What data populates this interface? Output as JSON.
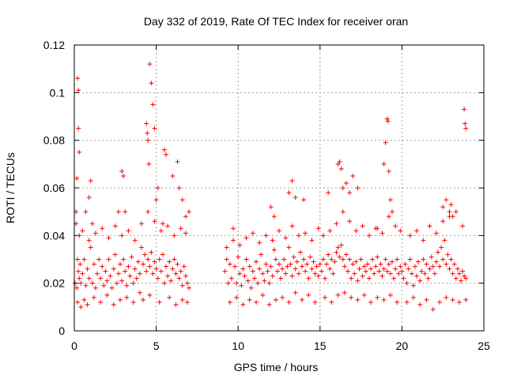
{
  "chart_data": {
    "type": "scatter",
    "title": "Day 332 of 2019, Rate Of TEC Index for receiver oran",
    "xlabel": "GPS time / hours",
    "ylabel": "ROTI / TECUs",
    "xlim": [
      0,
      25
    ],
    "ylim": [
      0,
      0.12
    ],
    "xticks": [
      0,
      5,
      10,
      15,
      20,
      25
    ],
    "xtick_labels": [
      "0",
      "5",
      "10",
      "15",
      "20",
      "25"
    ],
    "yticks": [
      0,
      0.02,
      0.04,
      0.06,
      0.08,
      0.1,
      0.12
    ],
    "ytick_labels": [
      "0",
      "0.02",
      "0.04",
      "0.06",
      "0.08",
      "0.1",
      "0.12"
    ],
    "grid": true,
    "marker": "plus",
    "color": "#ff0000",
    "series": [
      {
        "name": "ROTI",
        "x": [
          0.05,
          0.1,
          0.15,
          0.2,
          0.25,
          0.3,
          0.35,
          0.4,
          0.5,
          0.6,
          0.7,
          0.8,
          0.9,
          1.0,
          1.1,
          1.2,
          1.3,
          1.4,
          1.5,
          1.6,
          1.7,
          1.8,
          1.9,
          2.0,
          2.1,
          2.2,
          2.3,
          2.4,
          2.5,
          2.6,
          2.7,
          2.8,
          2.9,
          3.0,
          3.1,
          3.2,
          3.3,
          3.4,
          3.5,
          3.6,
          3.7,
          3.8,
          3.9,
          4.0,
          4.1,
          4.2,
          4.3,
          4.4,
          4.5,
          4.6,
          4.7,
          4.8,
          4.9,
          5.0,
          5.1,
          5.2,
          5.3,
          5.4,
          5.5,
          5.6,
          5.7,
          5.8,
          5.9,
          6.0,
          6.1,
          6.2,
          6.3,
          6.4,
          6.5,
          6.6,
          6.7,
          6.8,
          6.9,
          7.0,
          0.2,
          0.25,
          0.25,
          0.3,
          0.1,
          0.15,
          0.7,
          0.9,
          1.0,
          1.1,
          2.7,
          2.9,
          3.0,
          3.1,
          4.4,
          4.45,
          4.5,
          4.55,
          4.6,
          4.7,
          4.8,
          4.9,
          5.0,
          5.1,
          5.4,
          5.5,
          5.6,
          6.0,
          6.3,
          6.4,
          6.6,
          6.8,
          7.0,
          0.2,
          0.4,
          0.6,
          0.8,
          1.2,
          1.6,
          2.0,
          2.4,
          2.8,
          3.2,
          3.6,
          4.0,
          4.2,
          4.6,
          5.2,
          5.8,
          6.2,
          6.6,
          6.9,
          0.3,
          0.5,
          0.9,
          1.3,
          1.7,
          2.1,
          2.5,
          2.9,
          3.3,
          3.7,
          4.1,
          4.5,
          4.9,
          5.3,
          5.7,
          6.1,
          6.5,
          6.8,
          9.2,
          9.3,
          9.4,
          9.5,
          9.6,
          9.7,
          9.8,
          9.9,
          10.0,
          10.1,
          10.2,
          10.3,
          10.4,
          10.5,
          10.6,
          10.7,
          10.8,
          10.9,
          11.0,
          11.1,
          11.2,
          11.3,
          11.4,
          11.5,
          11.6,
          11.7,
          11.8,
          11.9,
          12.0,
          12.1,
          12.2,
          12.3,
          12.4,
          12.5,
          12.6,
          12.7,
          12.8,
          12.9,
          13.0,
          13.1,
          13.2,
          13.3,
          13.4,
          13.5,
          13.6,
          13.7,
          13.8,
          13.9,
          14.0,
          14.1,
          14.2,
          14.3,
          14.4,
          14.5,
          14.6,
          14.7,
          14.8,
          14.9,
          15.0,
          9.5,
          9.9,
          10.3,
          10.7,
          11.1,
          11.5,
          11.9,
          12.3,
          12.7,
          13.1,
          13.5,
          13.9,
          14.3,
          14.7,
          9.3,
          9.7,
          10.1,
          10.5,
          10.9,
          11.3,
          11.7,
          12.1,
          12.5,
          12.9,
          13.3,
          13.7,
          14.1,
          14.5,
          14.9,
          12.0,
          12.2,
          13.1,
          13.3,
          13.5,
          14.0,
          15.5,
          15.1,
          15.2,
          15.3,
          15.4,
          15.5,
          15.6,
          15.7,
          15.8,
          15.9,
          16.0,
          16.1,
          16.2,
          16.3,
          16.4,
          16.5,
          16.6,
          16.7,
          16.8,
          16.9,
          17.0,
          17.1,
          17.2,
          17.3,
          17.4,
          17.5,
          17.6,
          17.7,
          17.8,
          17.9,
          18.0,
          18.1,
          18.2,
          18.3,
          18.4,
          18.5,
          18.6,
          18.7,
          18.8,
          18.9,
          19.0,
          19.1,
          19.2,
          19.3,
          19.4,
          19.5,
          19.6,
          19.7,
          19.8,
          19.9,
          20.0,
          15.3,
          15.7,
          16.1,
          16.5,
          16.9,
          17.3,
          17.7,
          18.1,
          18.5,
          18.9,
          19.3,
          19.7,
          15.2,
          15.6,
          16.0,
          16.4,
          16.8,
          17.2,
          17.6,
          18.0,
          18.4,
          18.8,
          19.2,
          19.6,
          19.9,
          16.1,
          16.2,
          16.3,
          16.4,
          16.6,
          16.8,
          17.0,
          17.3,
          18.5,
          18.9,
          19.0,
          19.1,
          19.15,
          19.2,
          19.3,
          19.4,
          20.1,
          20.2,
          20.3,
          20.4,
          20.5,
          20.6,
          20.7,
          20.8,
          20.9,
          21.0,
          21.1,
          21.2,
          21.3,
          21.4,
          21.5,
          21.6,
          21.7,
          21.8,
          21.9,
          22.0,
          22.1,
          22.2,
          22.3,
          22.4,
          22.5,
          22.6,
          22.7,
          22.8,
          22.9,
          23.0,
          23.1,
          23.2,
          23.3,
          23.4,
          23.5,
          23.6,
          23.7,
          23.8,
          23.9,
          20.3,
          20.7,
          21.1,
          21.5,
          21.9,
          22.3,
          22.7,
          23.1,
          23.5,
          23.9,
          20.5,
          20.9,
          21.3,
          21.7,
          22.1,
          22.5,
          22.9,
          23.3,
          23.7,
          22.5,
          22.7,
          22.9,
          23.0,
          23.1,
          23.8,
          23.85,
          23.9
        ],
        "y": [
          0.02,
          0.045,
          0.018,
          0.03,
          0.025,
          0.022,
          0.028,
          0.02,
          0.024,
          0.03,
          0.019,
          0.026,
          0.022,
          0.035,
          0.02,
          0.028,
          0.018,
          0.024,
          0.03,
          0.022,
          0.027,
          0.019,
          0.025,
          0.021,
          0.03,
          0.023,
          0.018,
          0.026,
          0.032,
          0.02,
          0.024,
          0.028,
          0.021,
          0.03,
          0.025,
          0.019,
          0.027,
          0.023,
          0.031,
          0.02,
          0.026,
          0.022,
          0.029,
          0.024,
          0.035,
          0.028,
          0.032,
          0.025,
          0.03,
          0.027,
          0.033,
          0.024,
          0.029,
          0.026,
          0.022,
          0.03,
          0.025,
          0.032,
          0.02,
          0.027,
          0.023,
          0.029,
          0.021,
          0.026,
          0.03,
          0.024,
          0.028,
          0.022,
          0.025,
          0.019,
          0.027,
          0.023,
          0.02,
          0.018,
          0.106,
          0.101,
          0.085,
          0.075,
          0.05,
          0.064,
          0.05,
          0.056,
          0.063,
          0.045,
          0.05,
          0.067,
          0.065,
          0.05,
          0.087,
          0.083,
          0.08,
          0.07,
          0.112,
          0.104,
          0.095,
          0.085,
          0.055,
          0.06,
          0.045,
          0.076,
          0.074,
          0.065,
          0.071,
          0.06,
          0.055,
          0.048,
          0.05,
          0.012,
          0.01,
          0.013,
          0.011,
          0.014,
          0.012,
          0.015,
          0.011,
          0.013,
          0.014,
          0.012,
          0.016,
          0.013,
          0.015,
          0.012,
          0.014,
          0.011,
          0.013,
          0.012,
          0.04,
          0.042,
          0.038,
          0.041,
          0.043,
          0.039,
          0.044,
          0.04,
          0.042,
          0.038,
          0.045,
          0.05,
          0.046,
          0.042,
          0.044,
          0.04,
          0.043,
          0.041,
          0.025,
          0.03,
          0.02,
          0.028,
          0.022,
          0.043,
          0.027,
          0.02,
          0.031,
          0.024,
          0.019,
          0.026,
          0.023,
          0.03,
          0.021,
          0.027,
          0.018,
          0.025,
          0.022,
          0.029,
          0.02,
          0.026,
          0.032,
          0.024,
          0.021,
          0.028,
          0.025,
          0.02,
          0.027,
          0.023,
          0.034,
          0.03,
          0.025,
          0.028,
          0.022,
          0.026,
          0.03,
          0.024,
          0.027,
          0.035,
          0.028,
          0.023,
          0.031,
          0.026,
          0.029,
          0.024,
          0.033,
          0.027,
          0.03,
          0.025,
          0.028,
          0.022,
          0.031,
          0.026,
          0.029,
          0.024,
          0.027,
          0.023,
          0.028,
          0.012,
          0.014,
          0.011,
          0.013,
          0.012,
          0.015,
          0.011,
          0.013,
          0.014,
          0.012,
          0.016,
          0.013,
          0.015,
          0.012,
          0.035,
          0.038,
          0.036,
          0.039,
          0.041,
          0.037,
          0.04,
          0.038,
          0.042,
          0.039,
          0.044,
          0.04,
          0.041,
          0.038,
          0.043,
          0.052,
          0.048,
          0.058,
          0.063,
          0.056,
          0.055,
          0.058,
          0.025,
          0.03,
          0.022,
          0.028,
          0.032,
          0.026,
          0.03,
          0.024,
          0.029,
          0.033,
          0.035,
          0.031,
          0.036,
          0.03,
          0.027,
          0.032,
          0.025,
          0.03,
          0.022,
          0.028,
          0.024,
          0.029,
          0.021,
          0.026,
          0.03,
          0.023,
          0.027,
          0.025,
          0.028,
          0.022,
          0.026,
          0.03,
          0.024,
          0.027,
          0.031,
          0.025,
          0.028,
          0.023,
          0.026,
          0.03,
          0.025,
          0.028,
          0.024,
          0.029,
          0.022,
          0.026,
          0.03,
          0.024,
          0.027,
          0.025,
          0.014,
          0.012,
          0.015,
          0.016,
          0.014,
          0.013,
          0.015,
          0.012,
          0.014,
          0.013,
          0.015,
          0.012,
          0.04,
          0.042,
          0.045,
          0.05,
          0.046,
          0.042,
          0.044,
          0.04,
          0.043,
          0.041,
          0.048,
          0.044,
          0.042,
          0.07,
          0.071,
          0.068,
          0.06,
          0.062,
          0.058,
          0.065,
          0.06,
          0.043,
          0.07,
          0.079,
          0.089,
          0.088,
          0.067,
          0.055,
          0.05,
          0.022,
          0.028,
          0.02,
          0.026,
          0.03,
          0.024,
          0.019,
          0.027,
          0.023,
          0.029,
          0.021,
          0.025,
          0.03,
          0.024,
          0.028,
          0.022,
          0.026,
          0.031,
          0.027,
          0.024,
          0.029,
          0.033,
          0.027,
          0.035,
          0.03,
          0.038,
          0.028,
          0.032,
          0.026,
          0.03,
          0.024,
          0.028,
          0.022,
          0.026,
          0.024,
          0.021,
          0.025,
          0.023,
          0.022,
          0.012,
          0.014,
          0.011,
          0.013,
          0.009,
          0.012,
          0.014,
          0.013,
          0.012,
          0.013,
          0.04,
          0.042,
          0.038,
          0.044,
          0.041,
          0.046,
          0.048,
          0.05,
          0.044,
          0.052,
          0.055,
          0.05,
          0.053,
          0.048,
          0.093,
          0.087,
          0.085
        ]
      }
    ]
  }
}
